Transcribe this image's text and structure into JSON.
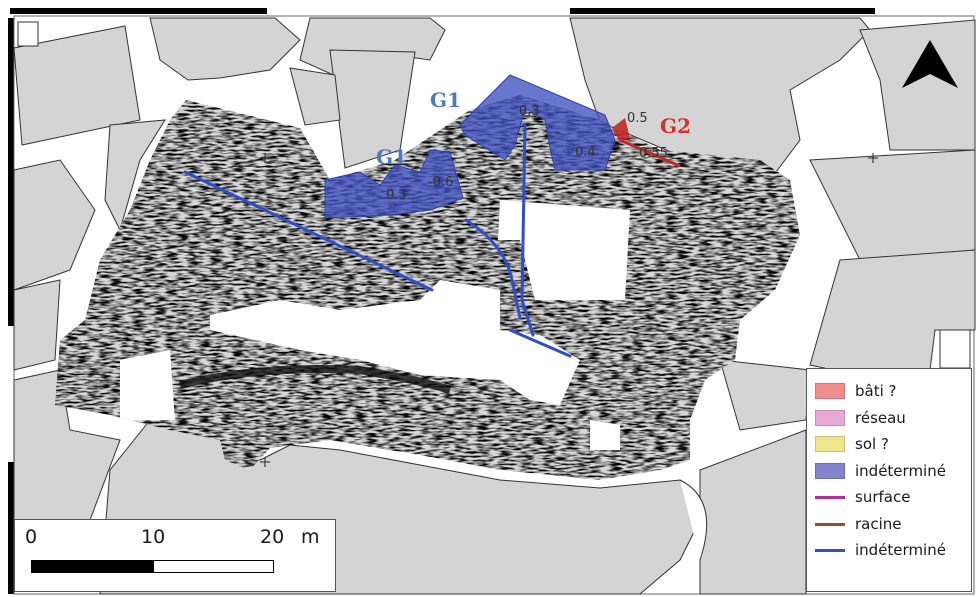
{
  "labels": {
    "g1_top": "G1",
    "g1_left": "G1",
    "g2": "G2"
  },
  "depths": {
    "d1": "0.3",
    "d2": "0.5",
    "d3": "0.4",
    "d4": "0.55",
    "d5": "-0.6",
    "d6": "0.3"
  },
  "colors": {
    "anomaly_blue": "#3d4fc0",
    "line_blue": "#2f4fc8",
    "g1_text": "#4a7bc4",
    "g2_text": "#d0342c",
    "g2_feature": "#c42828"
  },
  "scalebar": {
    "tick0": "0",
    "tick1": "10",
    "tick2": "20",
    "unit": "m"
  },
  "legend": {
    "items": [
      {
        "label": "bâti ?",
        "color": "#f08c8c",
        "kind": "area"
      },
      {
        "label": "réseau",
        "color": "#e6a9d6",
        "kind": "area"
      },
      {
        "label": "sol ?",
        "color": "#ede68a",
        "kind": "area"
      },
      {
        "label": "indéterminé",
        "color": "#7f84cc",
        "kind": "area"
      },
      {
        "label": "surface",
        "color": "#b0309c",
        "kind": "line"
      },
      {
        "label": "racine",
        "color": "#9b4a33",
        "kind": "line"
      },
      {
        "label": "indéterminé",
        "color": "#2f4fc8",
        "kind": "line"
      }
    ]
  },
  "north_arrow": "north-arrow-icon"
}
